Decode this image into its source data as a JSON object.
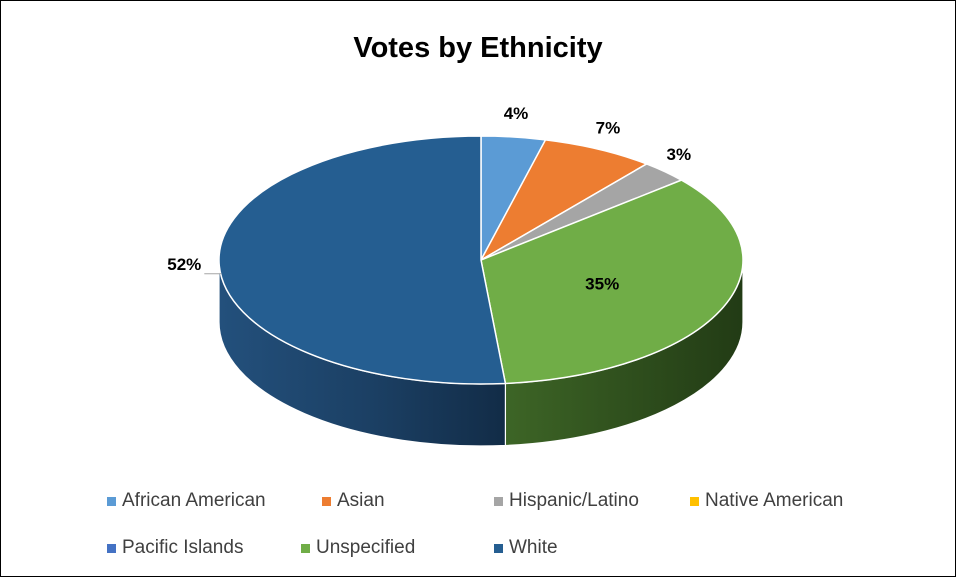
{
  "chart_data": {
    "type": "pie",
    "title": "Votes by Ethnicity",
    "categories": [
      "African American",
      "Asian",
      "Hispanic/Latino",
      "Native American",
      "Pacific Islands",
      "Unspecified",
      "White"
    ],
    "values": [
      4,
      7,
      3,
      0,
      0,
      35,
      52
    ],
    "value_labels": [
      "4%",
      "7%",
      "3%",
      "",
      "",
      "35%",
      "52%"
    ],
    "colors": [
      "#5B9BD5",
      "#ED7D31",
      "#A5A5A5",
      "#FFC000",
      "#4472C4",
      "#70AD47",
      "#255E91"
    ],
    "legend_position": "bottom",
    "style": "3-D pie"
  }
}
